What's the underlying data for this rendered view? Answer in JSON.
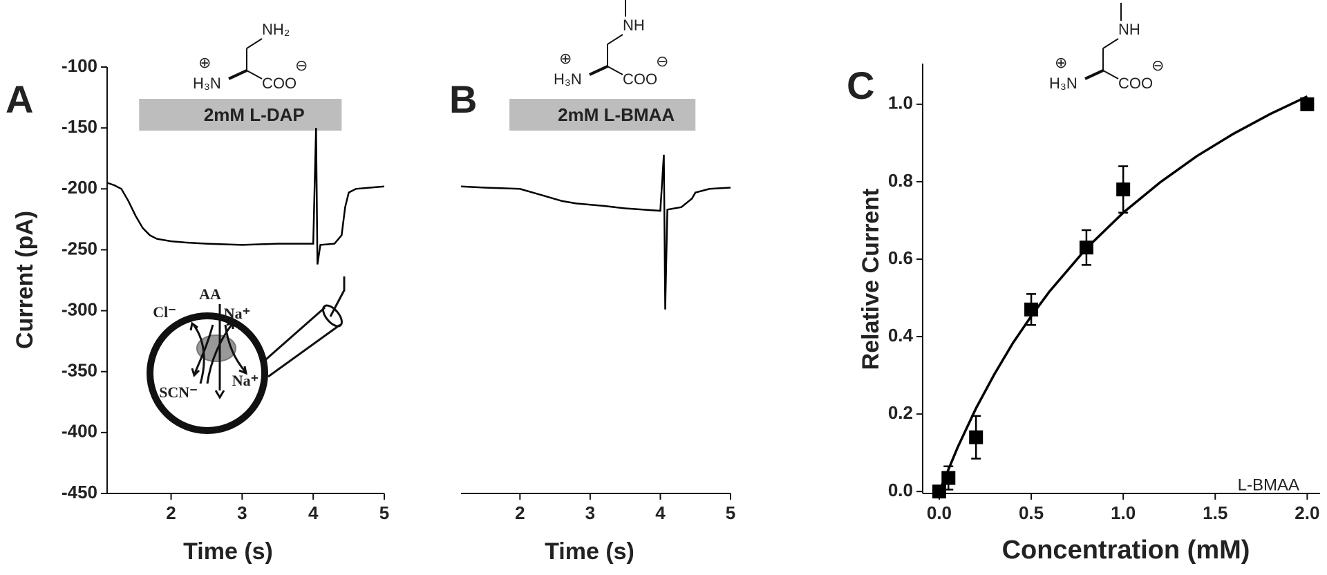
{
  "chart_data": [
    {
      "type": "line",
      "panel": "A",
      "ylabel": "Current (pA)",
      "xlabel": "Time (s)",
      "xlim": [
        1.1,
        5
      ],
      "ylim": [
        -450,
        -100
      ],
      "xticks": [
        2,
        3,
        4,
        5
      ],
      "yticks": [
        -450,
        -400,
        -350,
        -300,
        -250,
        -200,
        -150,
        -100
      ],
      "color": "#000000",
      "x": [
        1.1,
        1.2,
        1.3,
        1.4,
        1.5,
        1.6,
        1.7,
        1.8,
        2.0,
        2.2,
        2.5,
        3.0,
        3.5,
        4.0,
        4.04,
        4.06,
        4.1,
        4.3,
        4.4,
        4.45,
        4.5,
        4.6,
        4.8,
        5.0
      ],
      "values": [
        -195,
        -197,
        -200,
        -210,
        -222,
        -232,
        -238,
        -241,
        -243,
        -244,
        -245,
        -246,
        -245,
        -245,
        -150,
        -262,
        -246,
        -245,
        -238,
        -215,
        -203,
        -200,
        -199,
        -198
      ],
      "application": {
        "label": "2mM L-DAP",
        "start": 1.55,
        "end": 4.4
      },
      "structure_labels": [
        "NH₂",
        "H₃N",
        "COO",
        "⊕",
        "⊖"
      ],
      "inset_labels": [
        "AA",
        "Cl⁻",
        "Na⁺",
        "SCN⁻",
        "Na⁺"
      ]
    },
    {
      "type": "line",
      "panel": "B",
      "xlabel": "Time (s)",
      "xlim": [
        1.16,
        5
      ],
      "ylim": [
        -450,
        -100
      ],
      "xticks": [
        2,
        3,
        4,
        5
      ],
      "color": "#000000",
      "x": [
        1.16,
        1.5,
        2.0,
        2.3,
        2.6,
        2.8,
        3.2,
        3.5,
        4.0,
        4.05,
        4.07,
        4.1,
        4.3,
        4.45,
        4.5,
        4.7,
        5.0
      ],
      "values": [
        -198,
        -199,
        -200,
        -205,
        -210,
        -212,
        -214,
        -216,
        -218,
        -172,
        -299,
        -217,
        -215,
        -208,
        -203,
        -200,
        -199
      ],
      "application": {
        "label": "2mM L-BMAA",
        "start": 1.85,
        "end": 4.5
      },
      "structure_labels": [
        "NH",
        "H₃N",
        "COO",
        "⊕",
        "⊖"
      ]
    },
    {
      "type": "scatter",
      "panel": "C",
      "ylabel": "Relative Current",
      "xlabel": "Concentration (mM)",
      "xlim": [
        -0.09,
        2.07
      ],
      "ylim": [
        -0.005,
        1.105
      ],
      "xticks": [
        {
          "value": 0,
          "label": "0.0"
        },
        {
          "value": 0.5,
          "label": "0.5"
        },
        {
          "value": 1,
          "label": "1.0"
        },
        {
          "value": 1.5,
          "label": "1.5"
        },
        {
          "value": 2,
          "label": "2.0"
        }
      ],
      "yticks": [
        {
          "value": 0,
          "label": "0.0"
        },
        {
          "value": 0.2,
          "label": "0.2"
        },
        {
          "value": 0.4,
          "label": "0.4"
        },
        {
          "value": 0.6,
          "label": "0.6"
        },
        {
          "value": 0.8,
          "label": "0.8"
        },
        {
          "value": 1,
          "label": "1.0"
        }
      ],
      "color": "#000000",
      "x": [
        0,
        0.05,
        0.2,
        0.5,
        0.8,
        1.0,
        2.0
      ],
      "values": [
        0,
        0.035,
        0.14,
        0.47,
        0.63,
        0.78,
        1.0
      ],
      "errors": [
        0.01,
        0.03,
        0.055,
        0.04,
        0.045,
        0.06,
        0.01
      ],
      "fit": {
        "x": [
          0,
          0.1,
          0.2,
          0.3,
          0.4,
          0.5,
          0.6,
          0.8,
          1.0,
          1.2,
          1.4,
          1.6,
          1.8,
          2.0
        ],
        "values": [
          0,
          0.114,
          0.215,
          0.303,
          0.383,
          0.453,
          0.517,
          0.628,
          0.72,
          0.798,
          0.866,
          0.924,
          0.975,
          1.02
        ]
      },
      "annotation": "L-BMAA",
      "structure_labels": [
        "NH",
        "H₃N",
        "COO",
        "⊕",
        "⊖"
      ]
    }
  ]
}
